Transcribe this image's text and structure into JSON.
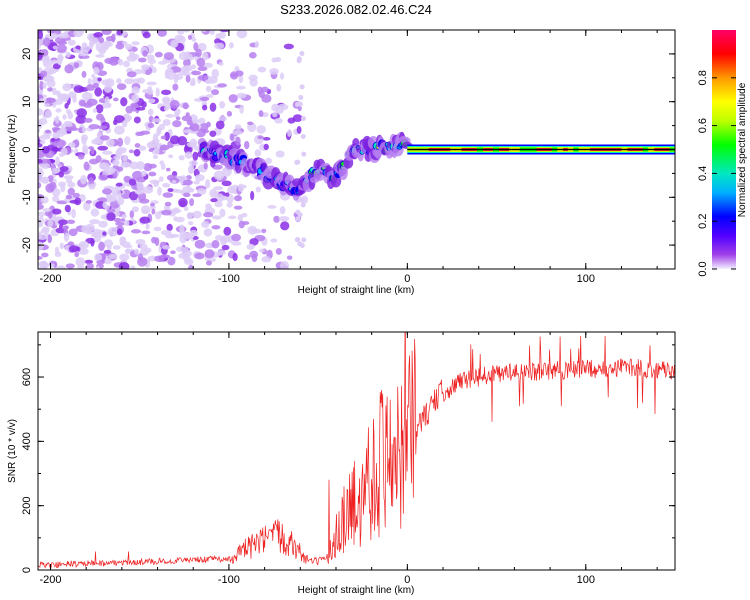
{
  "chart_data": [
    {
      "type": "heatmap",
      "title": "S233.2026.082.02.46.C24",
      "xlabel": "Height of straight line (km)",
      "ylabel": "Frequency (Hz)",
      "xlim": [
        -207,
        150
      ],
      "ylim": [
        -25,
        25
      ],
      "xticks": [
        -200,
        -100,
        0,
        100
      ],
      "yticks": [
        -20,
        -10,
        0,
        10,
        20
      ],
      "colorbar": {
        "label": "Normalized spectral amplitude",
        "range": [
          0,
          1
        ],
        "ticks": [
          0.0,
          0.2,
          0.4,
          0.6,
          0.8
        ],
        "colors": [
          "#f5f0ff",
          "#a040e8",
          "#5000ff",
          "#0000ff",
          "#00b0ff",
          "#00e8c0",
          "#00ff00",
          "#c0ff00",
          "#ffff00",
          "#ff9900",
          "#ff0000",
          "#ff0066"
        ]
      },
      "ridge": {
        "x": [
          -115,
          -100,
          -90,
          -80,
          -70,
          -60,
          -50,
          -40,
          -30,
          -20,
          -10,
          0,
          10,
          20,
          50,
          100,
          150
        ],
        "y": [
          0,
          -1.5,
          -3,
          -5,
          -7.5,
          -8.5,
          -4,
          -6,
          0,
          0,
          0.5,
          1.5,
          0.5,
          0,
          0,
          0,
          0
        ]
      }
    },
    {
      "type": "line",
      "xlabel": "Height of straight line (km)",
      "ylabel": "SNR (10 * v/v)",
      "xlim": [
        -207,
        150
      ],
      "ylim": [
        0,
        740
      ],
      "xticks": [
        -200,
        -100,
        0,
        100
      ],
      "yticks": [
        0,
        200,
        400,
        600
      ],
      "color": "#ee2222",
      "envelope": {
        "x": [
          -207,
          -150,
          -100,
          -85,
          -70,
          -55,
          -45,
          -40,
          -30,
          -20,
          -10,
          0,
          10,
          20,
          30,
          50,
          80,
          100,
          120,
          150
        ],
        "y": [
          15,
          25,
          35,
          80,
          110,
          25,
          30,
          120,
          200,
          300,
          380,
          400,
          480,
          560,
          590,
          610,
          620,
          625,
          630,
          620
        ]
      }
    }
  ]
}
